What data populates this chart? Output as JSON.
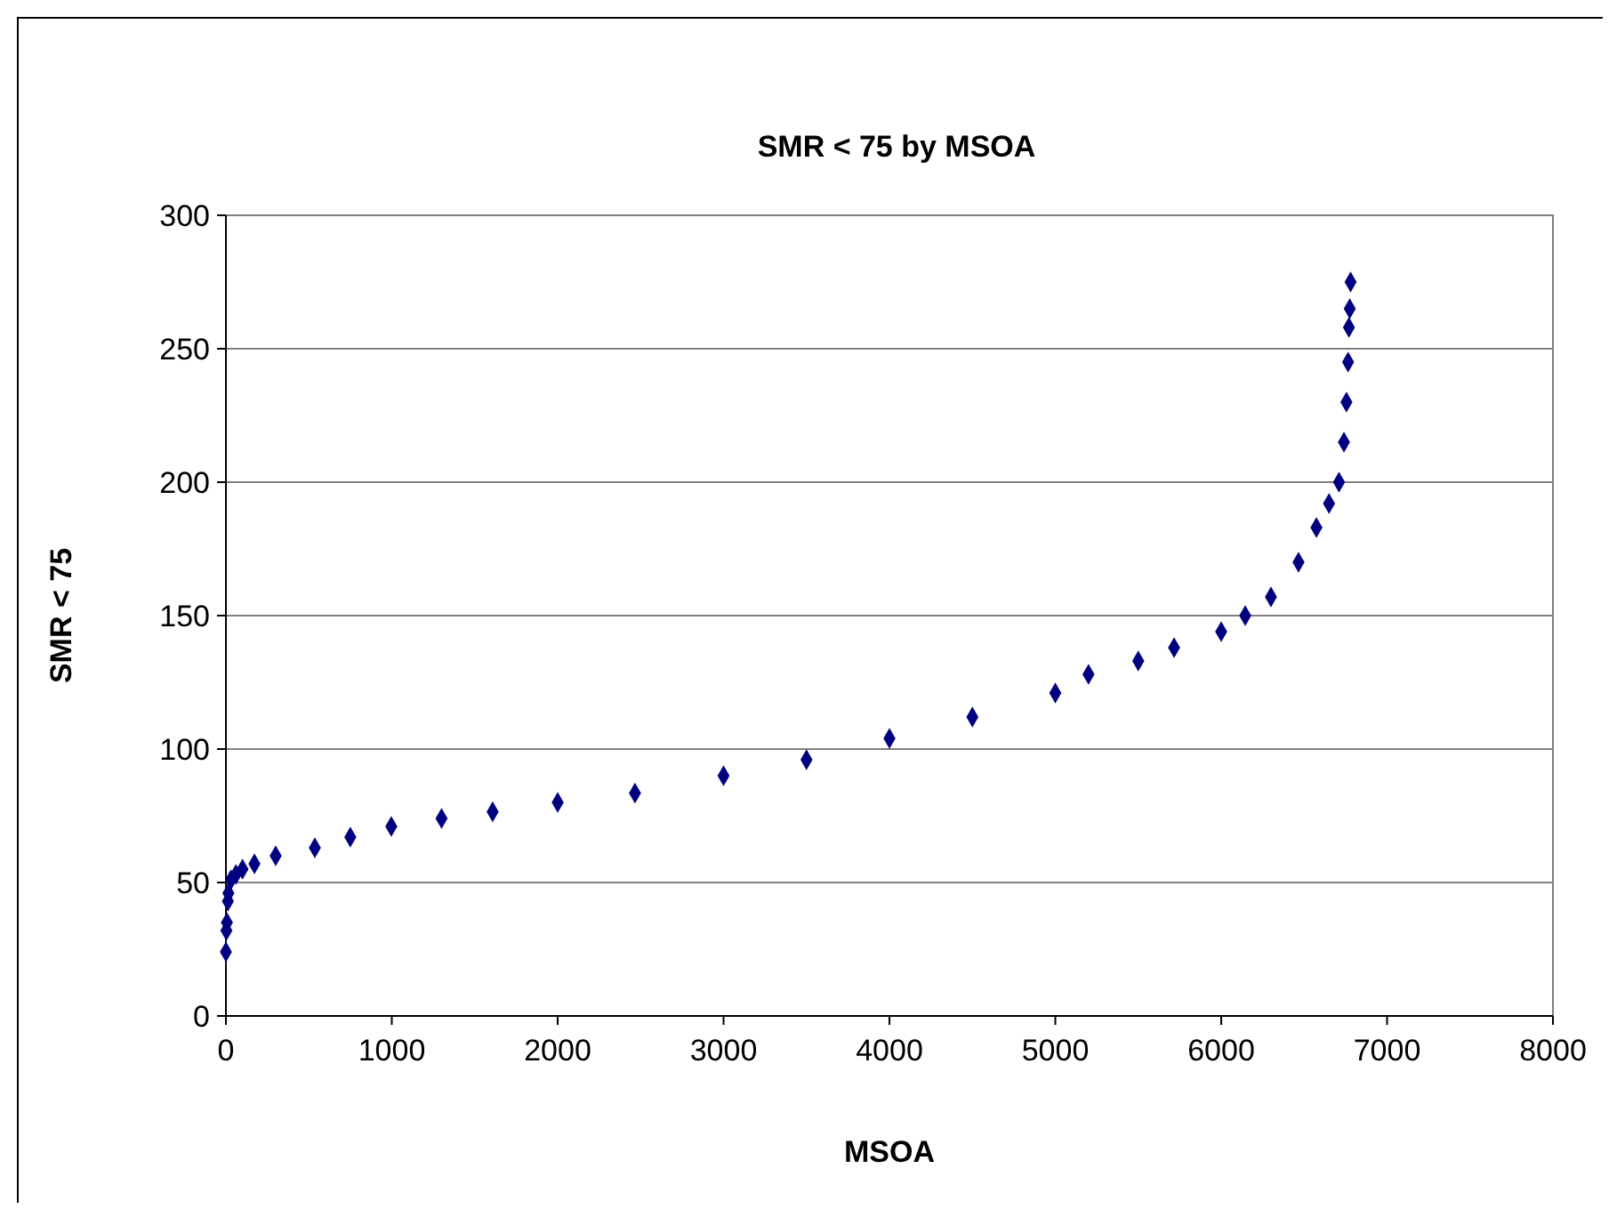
{
  "chart_data": {
    "type": "scatter",
    "title": "SMR < 75 by MSOA",
    "xlabel": "MSOA",
    "ylabel": "SMR < 75",
    "marker": "diamond",
    "grid": "y",
    "xlim": [
      0,
      8000
    ],
    "ylim": [
      0,
      300
    ],
    "xticks": [
      0,
      1000,
      2000,
      3000,
      4000,
      5000,
      6000,
      7000,
      8000
    ],
    "yticks": [
      0,
      50,
      100,
      150,
      200,
      250,
      300
    ],
    "series": [
      {
        "color": "#000080",
        "x": [
          0,
          3,
          6,
          12,
          15,
          30,
          60,
          100,
          172,
          300,
          536,
          750,
          997,
          1300,
          1608,
          2000,
          2466,
          3000,
          3500,
          4000,
          4500,
          5000,
          5200,
          5500,
          5716,
          6000,
          6145,
          6300,
          6466,
          6574,
          6650,
          6710,
          6740,
          6755,
          6765,
          6770,
          6775,
          6780
        ],
        "values": [
          24,
          32,
          35,
          43,
          46,
          51,
          53,
          55,
          57,
          60,
          63,
          67,
          71,
          74,
          76.5,
          80,
          83.5,
          90,
          96,
          104,
          112,
          121,
          128,
          133,
          138,
          144,
          150,
          157,
          170,
          183,
          192,
          200,
          215,
          230,
          245,
          258,
          265,
          275
        ]
      }
    ]
  }
}
